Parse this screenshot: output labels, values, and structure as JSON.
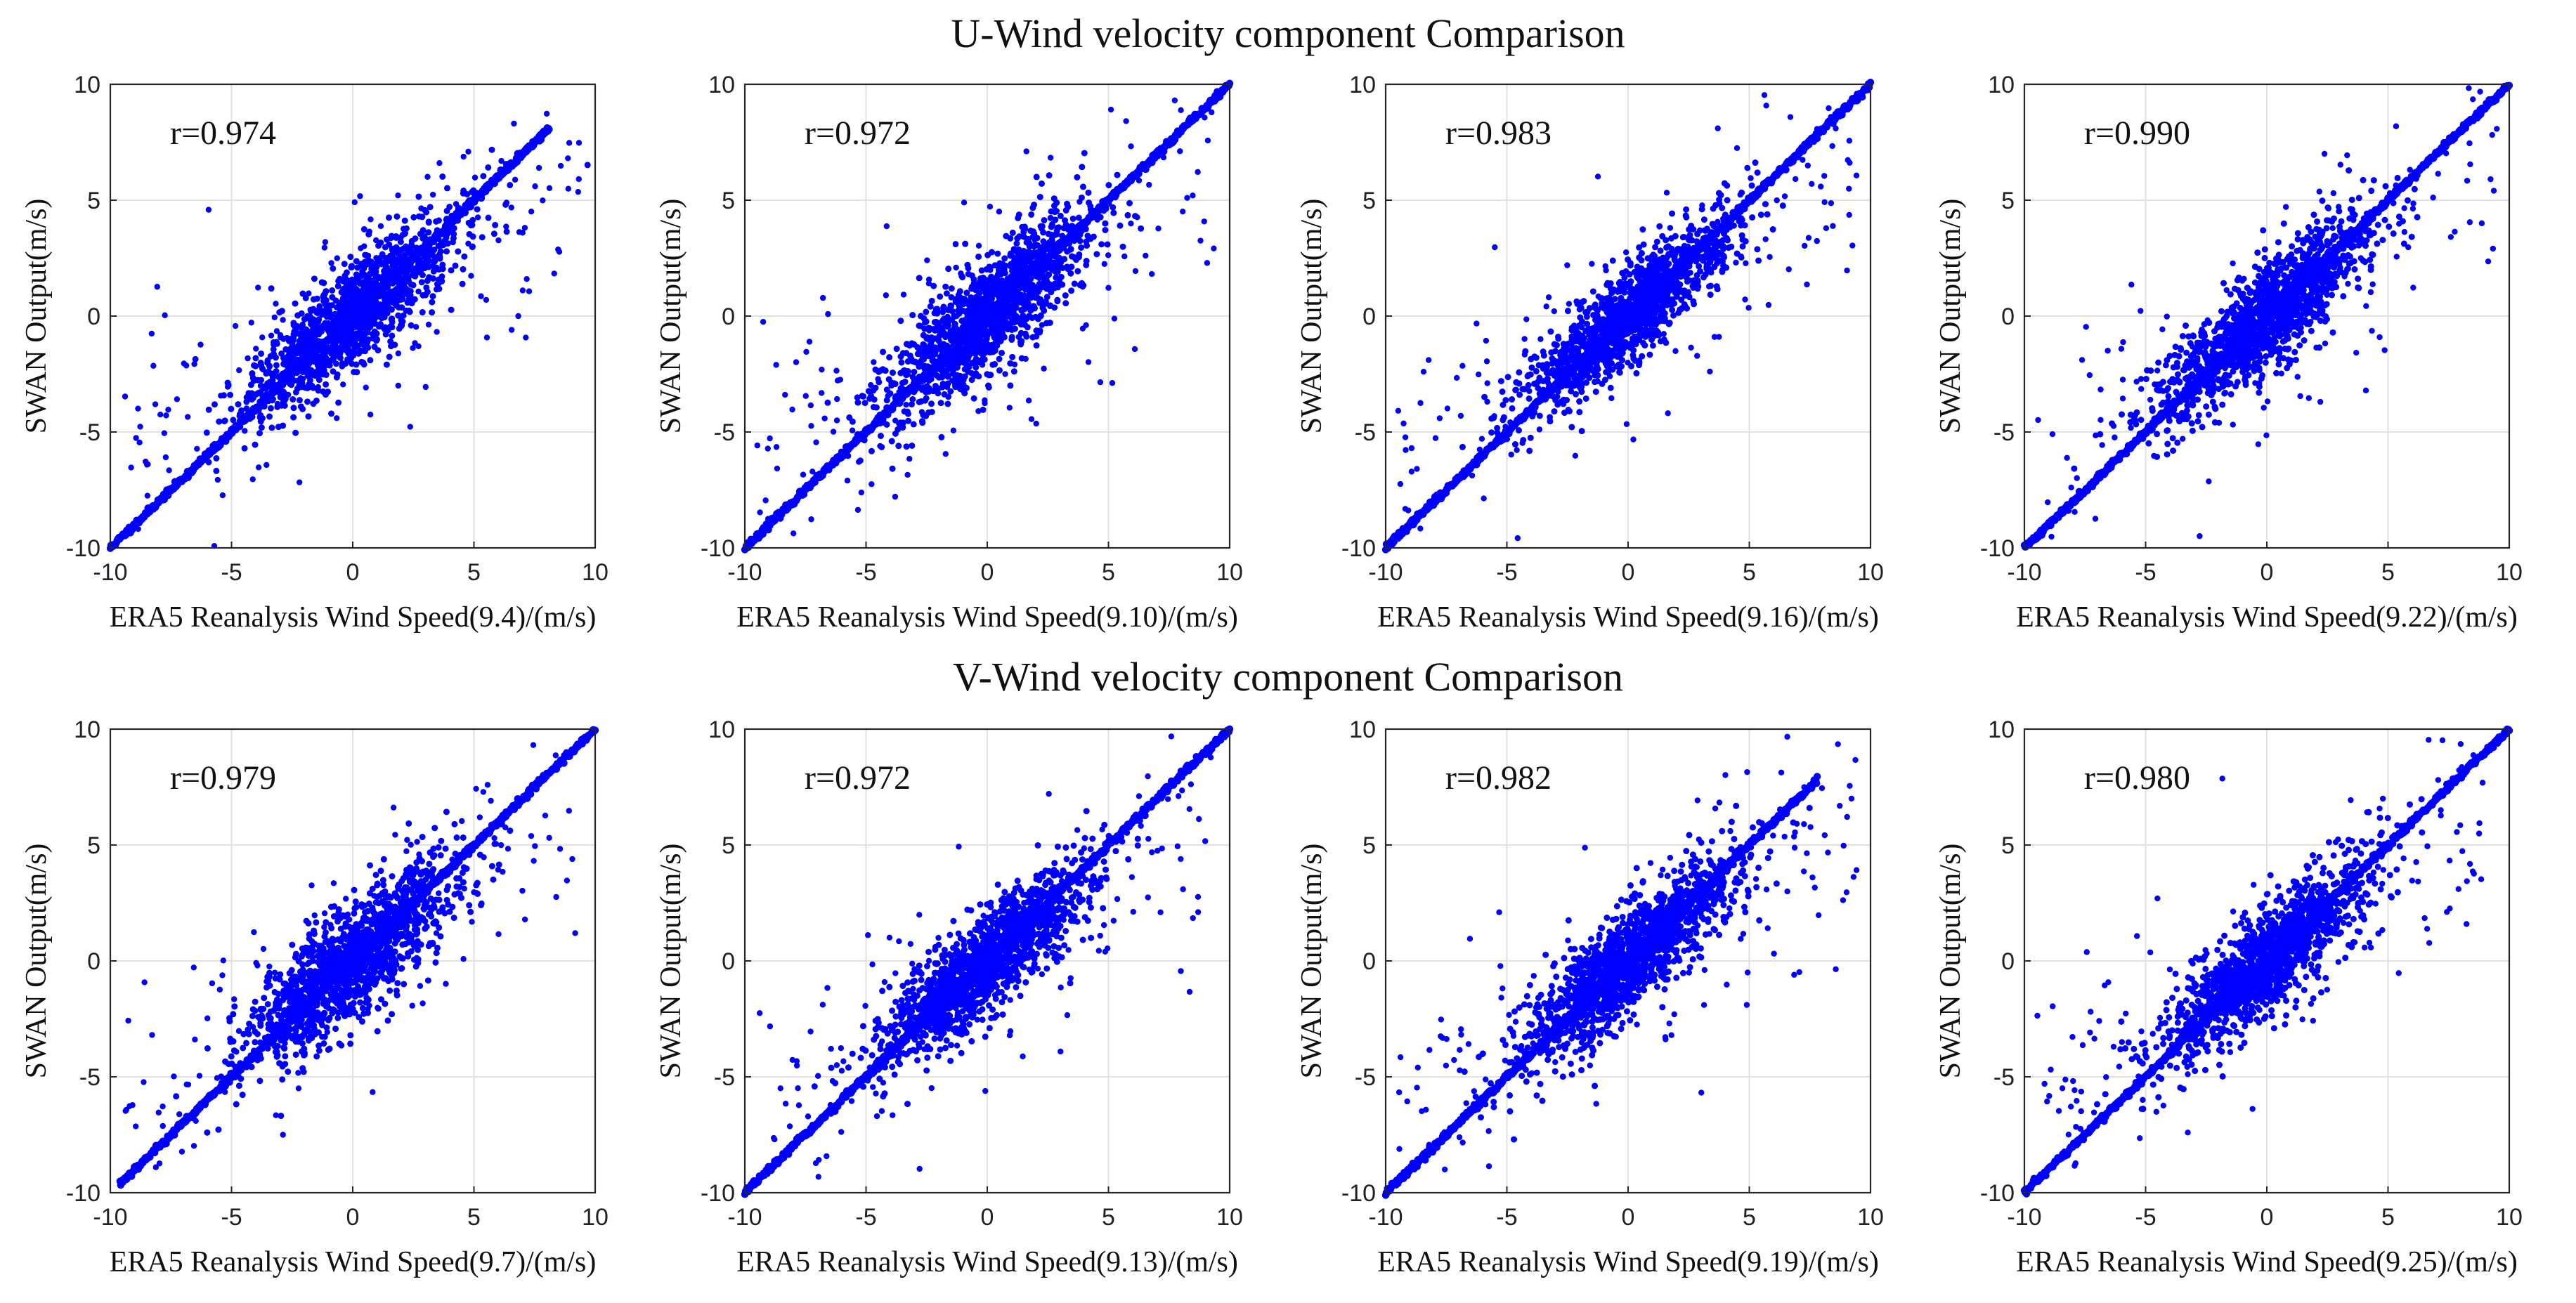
{
  "figure": {
    "top_title": "U-Wind velocity component Comparison",
    "bottom_title": "V-Wind velocity component Comparison"
  },
  "chart_data": [
    {
      "type": "scatter",
      "group": "U",
      "title": "",
      "xlabel": "ERA5 Reanalysis Wind Speed(9.4)/(m/s)",
      "ylabel": "SWAN Output(m/s)",
      "annotation": "r=0.974",
      "r": 0.974,
      "xlim": [
        -10,
        10
      ],
      "ylim": [
        -10,
        10
      ],
      "xticks": [
        -10,
        -5,
        0,
        5,
        10
      ],
      "yticks": [
        -10,
        -5,
        0,
        5,
        10
      ],
      "grid": true,
      "color": "#0000ff",
      "diag_range": [
        -10,
        8.1
      ],
      "scatter_sd": 0.9,
      "seed": 11
    },
    {
      "type": "scatter",
      "group": "U",
      "title": "",
      "xlabel": "ERA5 Reanalysis Wind Speed(9.10)/(m/s)",
      "ylabel": "SWAN Output(m/s)",
      "annotation": "r=0.972",
      "r": 0.972,
      "xlim": [
        -10,
        10
      ],
      "ylim": [
        -10,
        10
      ],
      "xticks": [
        -10,
        -5,
        0,
        5,
        10
      ],
      "yticks": [
        -10,
        -5,
        0,
        5,
        10
      ],
      "grid": true,
      "color": "#0000ff",
      "diag_range": [
        -10,
        10
      ],
      "scatter_sd": 1.0,
      "seed": 23
    },
    {
      "type": "scatter",
      "group": "U",
      "title": "",
      "xlabel": "ERA5 Reanalysis Wind Speed(9.16)/(m/s)",
      "ylabel": "SWAN Output(m/s)",
      "annotation": "r=0.983",
      "r": 0.983,
      "xlim": [
        -10,
        10
      ],
      "ylim": [
        -10,
        10
      ],
      "xticks": [
        -10,
        -5,
        0,
        5,
        10
      ],
      "yticks": [
        -10,
        -5,
        0,
        5,
        10
      ],
      "grid": true,
      "color": "#0000ff",
      "diag_range": [
        -10,
        10
      ],
      "scatter_sd": 0.8,
      "seed": 37
    },
    {
      "type": "scatter",
      "group": "U",
      "title": "",
      "xlabel": "ERA5 Reanalysis Wind Speed(9.22)/(m/s)",
      "ylabel": "SWAN Output(m/s)",
      "annotation": "r=0.990",
      "r": 0.99,
      "xlim": [
        -10,
        10
      ],
      "ylim": [
        -10,
        10
      ],
      "xticks": [
        -10,
        -5,
        0,
        5,
        10
      ],
      "yticks": [
        -10,
        -5,
        0,
        5,
        10
      ],
      "grid": true,
      "color": "#0000ff",
      "diag_range": [
        -10,
        10
      ],
      "scatter_sd": 0.9,
      "seed": 41
    },
    {
      "type": "scatter",
      "group": "V",
      "title": "",
      "xlabel": "ERA5 Reanalysis Wind Speed(9.7)/(m/s)",
      "ylabel": "SWAN Output(m/s)",
      "annotation": "r=0.979",
      "r": 0.979,
      "xlim": [
        -10,
        10
      ],
      "ylim": [
        -10,
        10
      ],
      "xticks": [
        -10,
        -5,
        0,
        5,
        10
      ],
      "yticks": [
        -10,
        -5,
        0,
        5,
        10
      ],
      "grid": true,
      "color": "#0000ff",
      "diag_range": [
        -9.6,
        10
      ],
      "scatter_sd": 1.0,
      "seed": 53
    },
    {
      "type": "scatter",
      "group": "V",
      "title": "",
      "xlabel": "ERA5 Reanalysis Wind Speed(9.13)/(m/s)",
      "ylabel": "SWAN Output(m/s)",
      "annotation": "r=0.972",
      "r": 0.972,
      "xlim": [
        -10,
        10
      ],
      "ylim": [
        -10,
        10
      ],
      "xticks": [
        -10,
        -5,
        0,
        5,
        10
      ],
      "yticks": [
        -10,
        -5,
        0,
        5,
        10
      ],
      "grid": true,
      "color": "#0000ff",
      "diag_range": [
        -10,
        10
      ],
      "scatter_sd": 0.85,
      "seed": 67
    },
    {
      "type": "scatter",
      "group": "V",
      "title": "",
      "xlabel": "ERA5 Reanalysis Wind Speed(9.19)/(m/s)",
      "ylabel": "SWAN Output(m/s)",
      "annotation": "r=0.982",
      "r": 0.982,
      "xlim": [
        -10,
        10
      ],
      "ylim": [
        -10,
        10
      ],
      "xticks": [
        -10,
        -5,
        0,
        5,
        10
      ],
      "yticks": [
        -10,
        -5,
        0,
        5,
        10
      ],
      "grid": true,
      "color": "#0000ff",
      "diag_range": [
        -10,
        7.8
      ],
      "scatter_sd": 0.9,
      "seed": 79
    },
    {
      "type": "scatter",
      "group": "V",
      "title": "",
      "xlabel": "ERA5 Reanalysis Wind Speed(9.25)/(m/s)",
      "ylabel": "SWAN Output(m/s)",
      "annotation": "r=0.980",
      "r": 0.98,
      "xlim": [
        -10,
        10
      ],
      "ylim": [
        -10,
        10
      ],
      "xticks": [
        -10,
        -5,
        0,
        5,
        10
      ],
      "yticks": [
        -10,
        -5,
        0,
        5,
        10
      ],
      "grid": true,
      "color": "#0000ff",
      "diag_range": [
        -10,
        10
      ],
      "scatter_sd": 0.9,
      "seed": 97
    }
  ]
}
